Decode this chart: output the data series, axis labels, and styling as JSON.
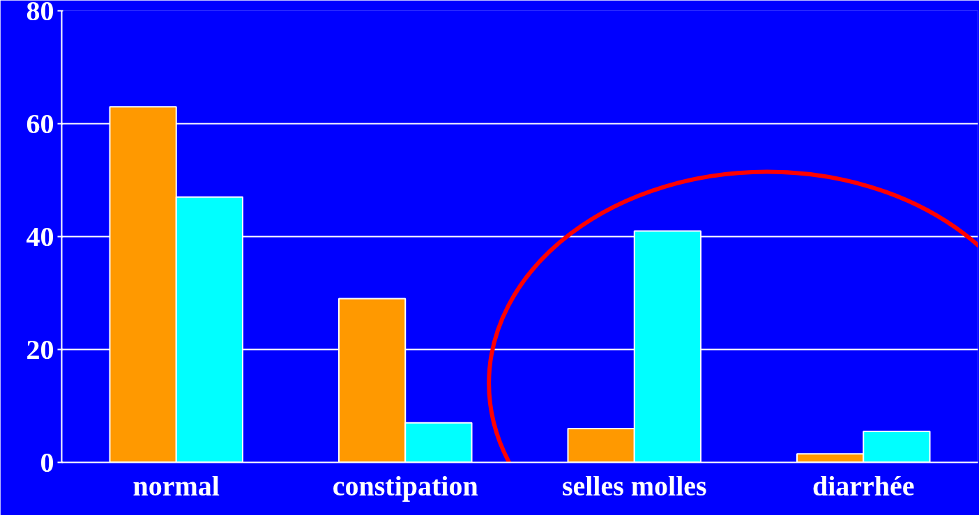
{
  "chart_data": {
    "type": "bar",
    "categories": [
      "normal",
      "constipation",
      "selles molles",
      "diarrhée"
    ],
    "series": [
      {
        "color": "#ff9900",
        "values": [
          63,
          29,
          6,
          1.5
        ]
      },
      {
        "color": "#00ffff",
        "values": [
          47,
          7,
          41,
          5.5
        ]
      }
    ],
    "ylim": [
      0,
      80
    ],
    "yticks": [
      0,
      20,
      40,
      60,
      80
    ],
    "grid": "y"
  }
}
